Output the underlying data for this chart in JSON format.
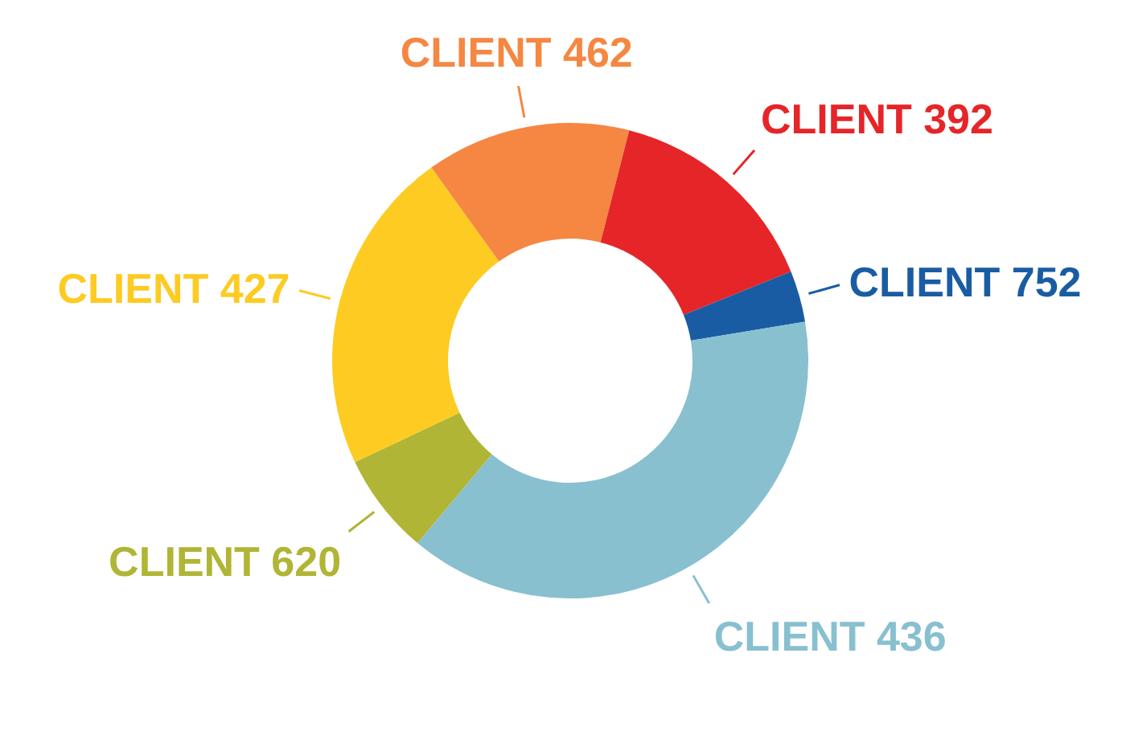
{
  "chart_data": {
    "type": "donut",
    "categories": [
      "CLIENT 462",
      "CLIENT 392",
      "CLIENT 752",
      "CLIENT 436",
      "CLIENT 620",
      "CLIENT 427"
    ],
    "values": [
      13.9,
      14.9,
      3.5,
      38.7,
      6.9,
      22.1
    ],
    "colors": [
      "#f58742",
      "#e52528",
      "#1a5ca3",
      "#88c0d0",
      "#b0b535",
      "#fdcb22"
    ]
  }
}
